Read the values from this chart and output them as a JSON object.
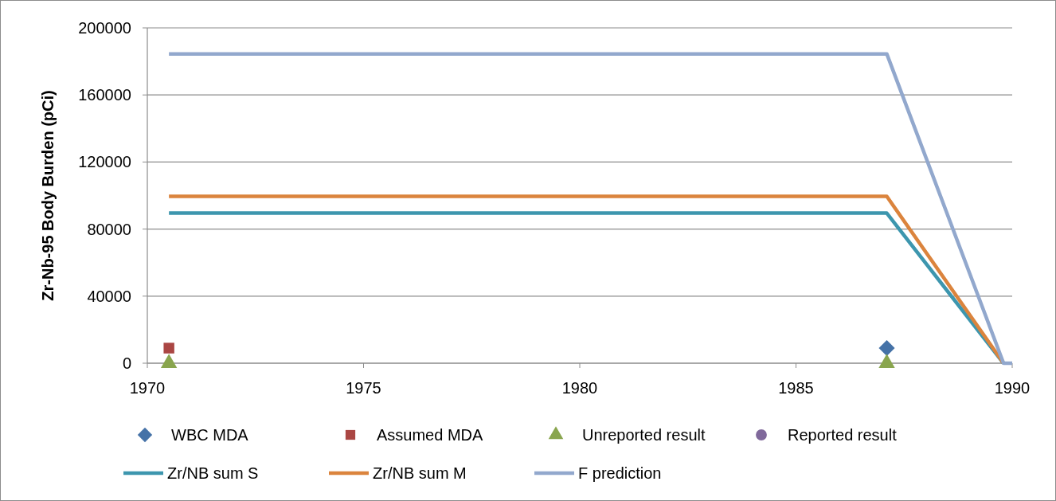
{
  "chart_data": {
    "type": "line",
    "ylabel": "Zr-Nb-95 Body Burden (pCi)",
    "xlim": [
      1970,
      1990
    ],
    "xticks": [
      1970,
      1975,
      1980,
      1985,
      1990
    ],
    "ylim": [
      0,
      200000
    ],
    "yticks": [
      0,
      40000,
      80000,
      120000,
      160000,
      200000
    ],
    "grid": "y",
    "legend": "bottom",
    "series": [
      {
        "name": "WBC MDA",
        "type": "scatter",
        "marker": "diamond",
        "color": "#4572a7",
        "x": [
          1987.1
        ],
        "values": [
          9000
        ]
      },
      {
        "name": "Assumed MDA",
        "type": "scatter",
        "marker": "square",
        "color": "#aa4643",
        "x": [
          1970.5
        ],
        "values": [
          9000
        ]
      },
      {
        "name": "Unreported result",
        "type": "scatter",
        "marker": "triangle",
        "color": "#89a54e",
        "x": [
          1970.5,
          1987.1
        ],
        "values": [
          0,
          0
        ]
      },
      {
        "name": "Reported result",
        "type": "scatter",
        "marker": "circle",
        "color": "#80699b"
      },
      {
        "name": "Zr/NB sum S",
        "color": "#3d96ae",
        "x": [
          1970.5,
          1987.1,
          1989.8
        ],
        "values": [
          89500,
          89500,
          0
        ]
      },
      {
        "name": "Zr/NB sum M",
        "color": "#db843d",
        "x": [
          1970.5,
          1987.1,
          1989.8
        ],
        "values": [
          99500,
          99500,
          0
        ]
      },
      {
        "name": "F prediction",
        "color": "#92a8cd",
        "x": [
          1970.5,
          1987.1,
          1989.8,
          1990
        ],
        "values": [
          184500,
          184500,
          0,
          0
        ]
      }
    ]
  }
}
